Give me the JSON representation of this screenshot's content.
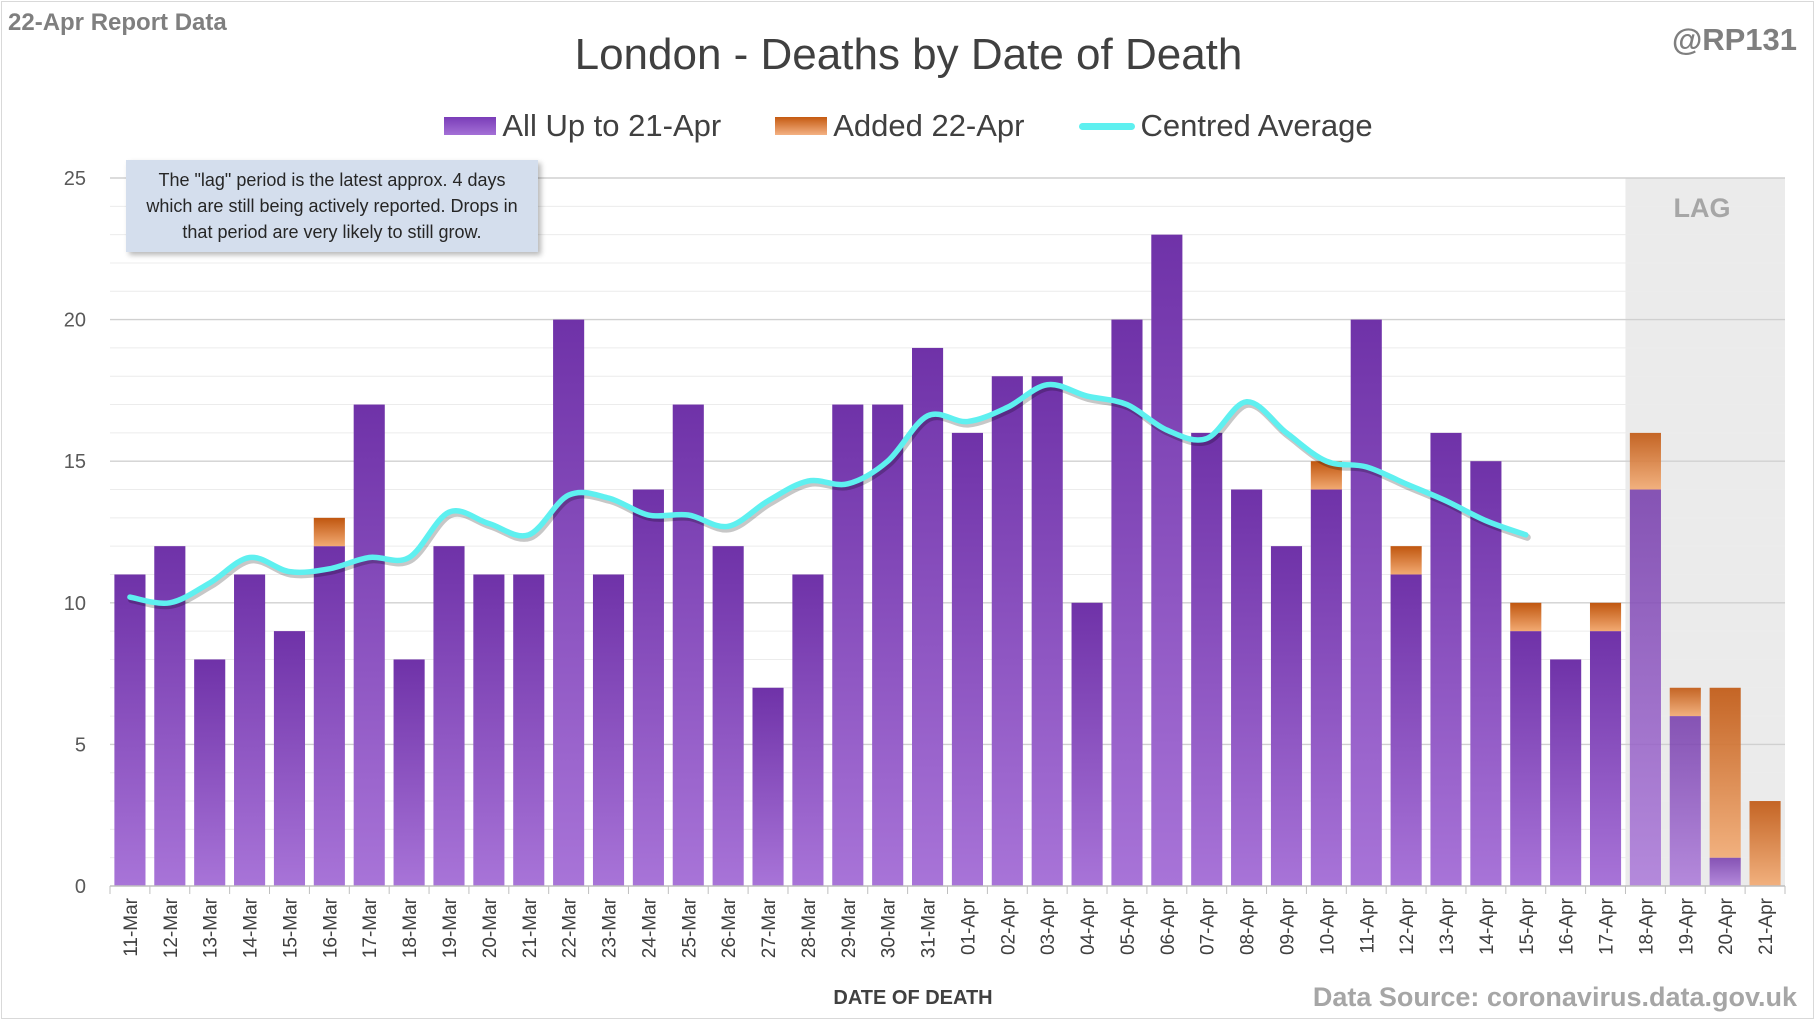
{
  "header": {
    "report_label": "22-Apr Report Data",
    "author": "@RP131",
    "source": "Data Source: coronavirus.data.gov.uk"
  },
  "annotation": {
    "note": "The \"lag\" period is the latest approx. 4 days which are still being actively reported. Drops in that period are very likely to still grow.",
    "lag_label": "LAG"
  },
  "colors": {
    "base": "#7f3fc0",
    "added": "#d9752e",
    "average": "#5ef0f0",
    "lag_shade": "#ebebeb"
  },
  "chart_data": {
    "type": "bar",
    "title": "London - Deaths by Date of Death",
    "xlabel": "DATE OF DEATH",
    "ylabel": "",
    "ylim": [
      0,
      25
    ],
    "yticks": [
      0,
      5,
      10,
      15,
      20,
      25
    ],
    "grid": true,
    "stacked": true,
    "legend_position": "top",
    "lag_start": "18-Apr",
    "categories": [
      "11-Mar",
      "12-Mar",
      "13-Mar",
      "14-Mar",
      "15-Mar",
      "16-Mar",
      "17-Mar",
      "18-Mar",
      "19-Mar",
      "20-Mar",
      "21-Mar",
      "22-Mar",
      "23-Mar",
      "24-Mar",
      "25-Mar",
      "26-Mar",
      "27-Mar",
      "28-Mar",
      "29-Mar",
      "30-Mar",
      "31-Mar",
      "01-Apr",
      "02-Apr",
      "03-Apr",
      "04-Apr",
      "05-Apr",
      "06-Apr",
      "07-Apr",
      "08-Apr",
      "09-Apr",
      "10-Apr",
      "11-Apr",
      "12-Apr",
      "13-Apr",
      "14-Apr",
      "15-Apr",
      "16-Apr",
      "17-Apr",
      "18-Apr",
      "19-Apr",
      "20-Apr",
      "21-Apr"
    ],
    "series": [
      {
        "name": "All Up to 21-Apr",
        "kind": "bar",
        "values": [
          11,
          12,
          8,
          11,
          9,
          12,
          17,
          8,
          12,
          11,
          11,
          20,
          11,
          14,
          17,
          12,
          7,
          11,
          17,
          17,
          19,
          16,
          18,
          18,
          10,
          20,
          23,
          16,
          14,
          12,
          14,
          20,
          11,
          16,
          15,
          9,
          8,
          9,
          14,
          6,
          1,
          0
        ]
      },
      {
        "name": "Added 22-Apr",
        "kind": "bar",
        "values": [
          0,
          0,
          0,
          0,
          0,
          1,
          0,
          0,
          0,
          0,
          0,
          0,
          0,
          0,
          0,
          0,
          0,
          0,
          0,
          0,
          0,
          0,
          0,
          0,
          0,
          0,
          0,
          0,
          0,
          0,
          1,
          0,
          1,
          0,
          0,
          1,
          0,
          1,
          2,
          1,
          6,
          3
        ]
      },
      {
        "name": "Centred Average",
        "kind": "line",
        "values": [
          10.2,
          10.0,
          10.7,
          11.6,
          11.1,
          11.2,
          11.6,
          11.6,
          13.2,
          12.8,
          12.4,
          13.8,
          13.7,
          13.1,
          13.1,
          12.7,
          13.6,
          14.3,
          14.2,
          15.0,
          16.6,
          16.4,
          16.9,
          17.7,
          17.3,
          17.0,
          16.1,
          15.8,
          17.1,
          16.0,
          15.0,
          14.8,
          14.2,
          13.6,
          12.9,
          12.4,
          null,
          null,
          null,
          null,
          null,
          null
        ]
      }
    ]
  }
}
